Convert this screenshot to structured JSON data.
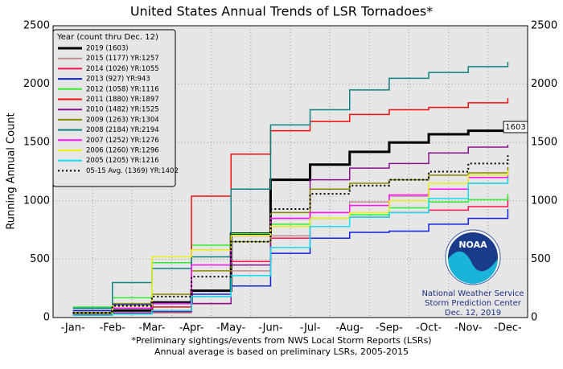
{
  "chart_data": {
    "type": "line",
    "title": "United States Annual Trends of LSR Tornadoes*",
    "y_label": "Running Annual Count",
    "footnote": [
      "*Preliminary sightings/events from NWS Local Storm Reports (LSRs)",
      "Annual average is based on preliminary LSRs, 2005-2015"
    ],
    "legend_title": "Year (count thru Dec. 12)",
    "annotation": "1603",
    "logo_text": "NOAA",
    "agency": [
      "National Weather Service",
      "Storm Prediction Center",
      "Dec. 12, 2019"
    ],
    "categories": [
      "-Jan-",
      "-Feb-",
      "-Mar-",
      "-Apr-",
      "-May-",
      "-Jun-",
      "-Jul-",
      "-Aug-",
      "-Sep-",
      "-Oct-",
      "-Nov-",
      "-Dec-"
    ],
    "ylim": [
      0,
      2500
    ],
    "yticks": [
      0,
      500,
      1000,
      1500,
      2000,
      2500
    ],
    "grid": true,
    "series": [
      {
        "name": "2019 (1603)",
        "color": "#000000",
        "linewidth": 3,
        "values": [
          40,
          60,
          130,
          230,
          720,
          1180,
          1310,
          1420,
          1500,
          1570,
          1600,
          1603
        ]
      },
      {
        "name": "2015 (1177) YR:1257",
        "color": "#c09090",
        "values": [
          20,
          30,
          40,
          180,
          400,
          700,
          900,
          990,
          1040,
          1100,
          1150,
          1230
        ]
      },
      {
        "name": "2014 (1026) YR:1055",
        "color": "#ff1050",
        "values": [
          20,
          40,
          60,
          120,
          480,
          680,
          780,
          860,
          900,
          920,
          950,
          1040
        ]
      },
      {
        "name": "2013 (927) YR:943",
        "color": "#1020e0",
        "values": [
          60,
          110,
          120,
          200,
          270,
          550,
          680,
          730,
          740,
          800,
          850,
          930
        ]
      },
      {
        "name": "2012 (1058) YR:1116",
        "color": "#30ee30",
        "values": [
          90,
          170,
          470,
          620,
          720,
          800,
          850,
          880,
          940,
          990,
          1010,
          1060
        ]
      },
      {
        "name": "2011 (1880) YR:1897",
        "color": "#ee1010",
        "values": [
          20,
          40,
          90,
          1040,
          1400,
          1600,
          1680,
          1740,
          1780,
          1800,
          1840,
          1880
        ]
      },
      {
        "name": "2010 (1482) YR:1525",
        "color": "#881090",
        "values": [
          20,
          40,
          50,
          120,
          450,
          850,
          1180,
          1280,
          1320,
          1410,
          1460,
          1480
        ]
      },
      {
        "name": "2009 (1263) YR:1304",
        "color": "#888800",
        "values": [
          40,
          120,
          200,
          400,
          650,
          900,
          1100,
          1150,
          1180,
          1220,
          1240,
          1290
        ]
      },
      {
        "name": "2008 (2184) YR:2194",
        "color": "#108080",
        "values": [
          80,
          300,
          420,
          520,
          1100,
          1650,
          1780,
          1950,
          2050,
          2100,
          2150,
          2190
        ]
      },
      {
        "name": "2007 (1252) YR:1276",
        "color": "#ff10ff",
        "values": [
          20,
          80,
          120,
          450,
          700,
          850,
          900,
          960,
          1050,
          1100,
          1200,
          1250
        ]
      },
      {
        "name": "2006 (1260) YR:1296",
        "color": "#eeee10",
        "values": [
          40,
          100,
          520,
          580,
          700,
          780,
          850,
          900,
          1000,
          1150,
          1220,
          1260
        ]
      },
      {
        "name": "2005 (1205) YR:1216",
        "color": "#10e0f0",
        "values": [
          20,
          30,
          60,
          180,
          360,
          600,
          780,
          860,
          900,
          1020,
          1150,
          1200
        ]
      },
      {
        "name": "05-15 Avg. (1369) YR:1402",
        "color": "#000000",
        "linestyle": "dotted",
        "values": [
          40,
          100,
          180,
          350,
          650,
          930,
          1060,
          1130,
          1180,
          1250,
          1320,
          1390
        ]
      }
    ]
  }
}
